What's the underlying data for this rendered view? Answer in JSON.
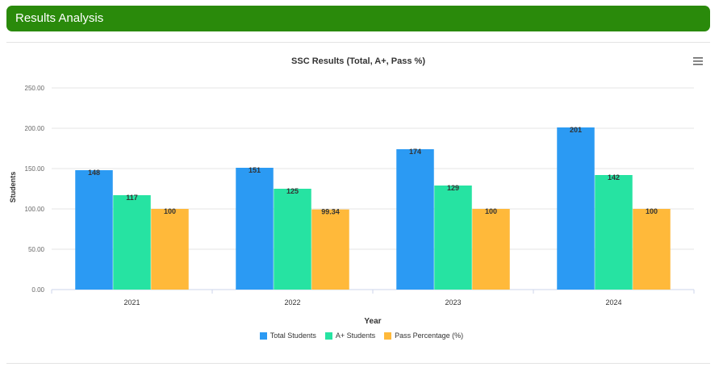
{
  "header": {
    "title": "Results Analysis"
  },
  "colors": {
    "header_bg": "#2a8a0b",
    "menu_icon": "#666666"
  },
  "chart_data": {
    "type": "bar",
    "title": "SSC Results (Total, A+, Pass %)",
    "xlabel": "Year",
    "ylabel": "Students",
    "categories": [
      "2021",
      "2022",
      "2023",
      "2024"
    ],
    "ylim": [
      0,
      250
    ],
    "yticks": [
      "0.00",
      "50.00",
      "100.00",
      "150.00",
      "200.00",
      "250.00"
    ],
    "grid": true,
    "legend_position": "bottom",
    "series": [
      {
        "name": "Total Students",
        "color": "#2b9af3",
        "values": [
          148,
          151,
          174,
          201
        ],
        "labels": [
          "148",
          "151",
          "174",
          "201"
        ]
      },
      {
        "name": "A+ Students",
        "color": "#26e3a2",
        "values": [
          117,
          125,
          129,
          142
        ],
        "labels": [
          "117",
          "125",
          "129",
          "142"
        ]
      },
      {
        "name": "Pass Percentage (%)",
        "color": "#ffb93a",
        "values": [
          100,
          99.34,
          100,
          100
        ],
        "labels": [
          "100",
          "99.34",
          "100",
          "100"
        ]
      }
    ]
  }
}
